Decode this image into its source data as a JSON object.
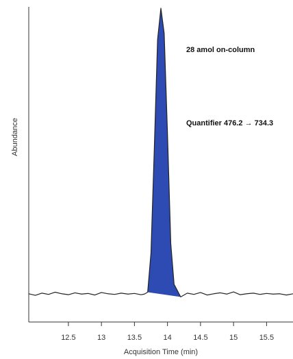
{
  "chart_data": {
    "type": "line",
    "y_label": "Abundance",
    "x_label": "Acquisition Time (min)",
    "annotations": [
      "28 amol on-column",
      "Quantifier 476.2 → 734.3"
    ],
    "x": [
      11.9,
      12.0,
      12.1,
      12.2,
      12.3,
      12.4,
      12.5,
      12.6,
      12.7,
      12.8,
      12.9,
      13.0,
      13.1,
      13.2,
      13.3,
      13.4,
      13.5,
      13.6,
      13.65,
      13.7,
      13.75,
      13.8,
      13.85,
      13.9,
      13.95,
      14.0,
      14.05,
      14.1,
      14.15,
      14.2,
      14.3,
      14.4,
      14.5,
      14.6,
      14.7,
      14.8,
      14.9,
      15.0,
      15.1,
      15.2,
      15.3,
      15.4,
      15.5,
      15.6,
      15.7,
      15.8,
      15.9
    ],
    "series": [
      {
        "color": "#222222",
        "values": [
          9,
          8.5,
          9.2,
          8.8,
          9.5,
          9.0,
          8.7,
          9.3,
          8.9,
          9.1,
          8.6,
          9.4,
          9.0,
          8.8,
          9.2,
          8.9,
          9.1,
          8.7,
          8.9,
          9.5,
          22,
          55,
          90,
          100,
          92,
          60,
          25,
          12,
          10,
          8,
          9.2,
          8.8,
          9.4,
          8.6,
          9.0,
          9.3,
          8.9,
          9.6,
          8.7,
          9.0,
          9.2,
          8.8,
          9.1,
          8.9,
          9.0,
          8.6,
          9.0
        ]
      }
    ],
    "area": {
      "xlim": [
        13.7,
        14.2
      ],
      "color": "#2d4bb3"
    },
    "xlim": [
      11.9,
      15.9
    ],
    "ylim": [
      0,
      100
    ],
    "xticks": [
      12.5,
      13,
      13.5,
      14,
      14.5,
      15,
      15.5
    ]
  }
}
